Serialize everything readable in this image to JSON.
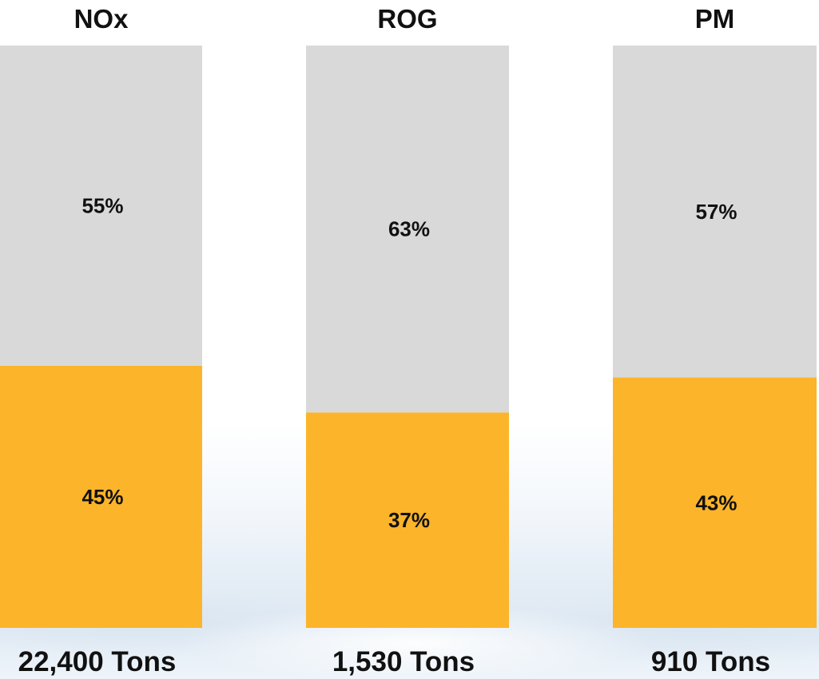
{
  "chart_data": {
    "type": "bar",
    "stacked": true,
    "normalized": true,
    "categories": [
      "NOx",
      "ROG",
      "PM"
    ],
    "series": [
      {
        "values": [
          45,
          37,
          43
        ],
        "labels": [
          "45%",
          "37%",
          "43%"
        ],
        "color": "#fcb42a"
      },
      {
        "values": [
          55,
          63,
          57
        ],
        "labels": [
          "55%",
          "63%",
          "57%"
        ],
        "color": "#d9d9d9"
      }
    ],
    "totals": [
      "22,400 Tons",
      "1,530 Tons",
      "910 Tons"
    ],
    "ylim": [
      0,
      100
    ],
    "grid": false,
    "legend": "none"
  }
}
